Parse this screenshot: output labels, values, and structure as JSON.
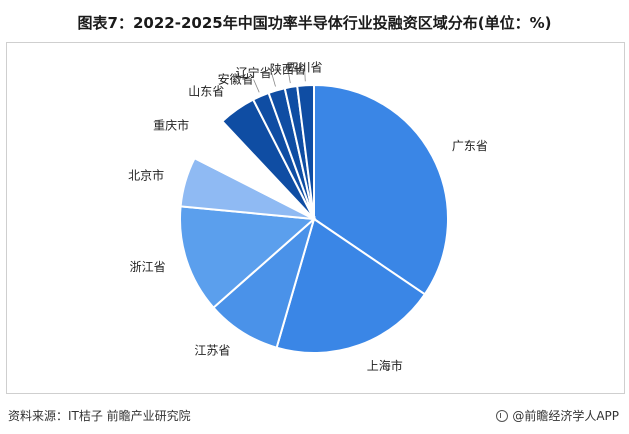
{
  "title": "图表7：2022-2025年中国功率半导体行业投融资区域分布(单位：%)",
  "chart_data": {
    "type": "pie",
    "title": "图表7：2022-2025年中国功率半导体行业投融资区域分布(单位：%)",
    "unit": "%",
    "start_angle_deg": 0,
    "direction": "clockwise",
    "legend": "none",
    "slices": [
      {
        "label": "广东省",
        "value": 34.5,
        "color": "#3a86e6"
      },
      {
        "label": "上海市",
        "value": 20.0,
        "color": "#3a86e6"
      },
      {
        "label": "江苏省",
        "value": 9.0,
        "color": "#4a92e9"
      },
      {
        "label": "浙江省",
        "value": 13.0,
        "color": "#5b9fed"
      },
      {
        "label": "北京市",
        "value": 6.0,
        "color": "#8fbaf3"
      },
      {
        "label": "重庆市",
        "value": 5.5,
        "color": "#ffffff"
      },
      {
        "label": "山东省",
        "value": 4.5,
        "color": "#0f4da3"
      },
      {
        "label": "安徽省",
        "value": 2.0,
        "color": "#0f4da3"
      },
      {
        "label": "辽宁省",
        "value": 2.0,
        "color": "#0f4da3"
      },
      {
        "label": "陕西省",
        "value": 1.5,
        "color": "#0f4da3"
      },
      {
        "label": "四川省",
        "value": 2.0,
        "color": "#0f4da3"
      }
    ]
  },
  "footer": {
    "source": "资料来源：IT桔子 前瞻产业研究院",
    "brand": "@前瞻经济学人APP"
  }
}
